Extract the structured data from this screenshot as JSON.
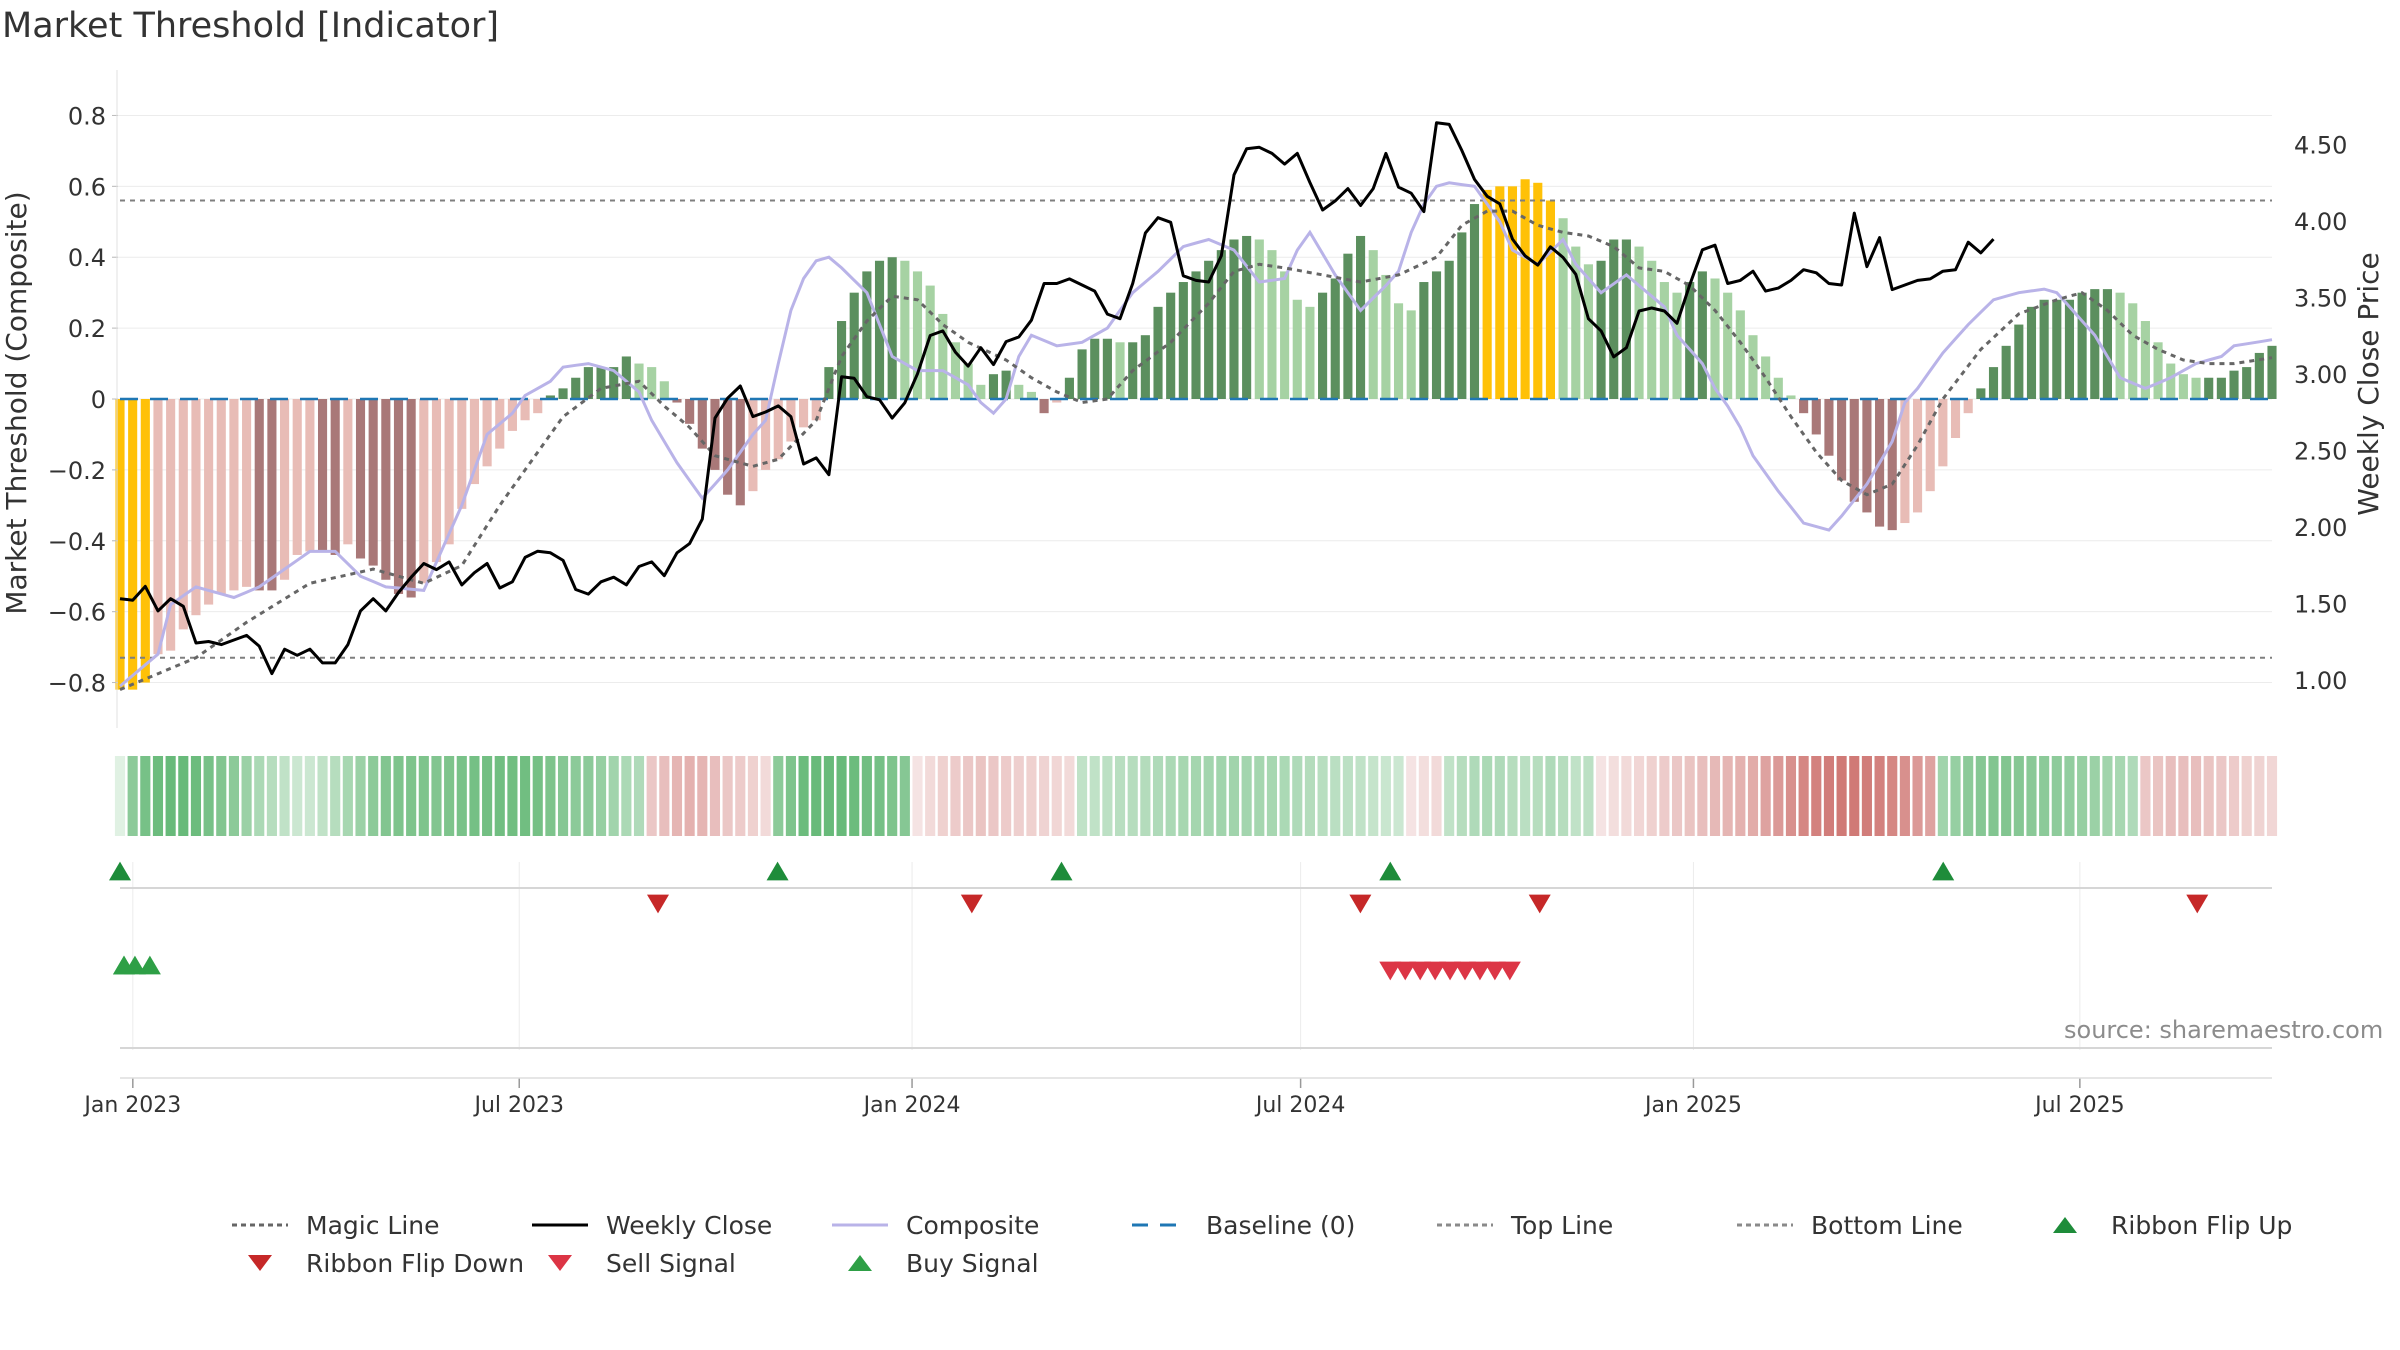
{
  "title": "Market Threshold [Indicator]",
  "source": "source: sharemaestro.com",
  "colors": {
    "composite": "#b9b3e8",
    "weekly_close": "#000000",
    "magic_line": "#666666",
    "baseline": "#1f77b4",
    "guide_line": "#7f7f7f",
    "extreme_bar": "#ffc107",
    "strong_up": "#5b8f5e",
    "weak_up": "#a6d2a3",
    "strong_down": "#a97878",
    "weak_down": "#e8bcb6",
    "buy": "#2e9f46",
    "sell": "#dc3545",
    "flip_up": "#1e8c3a",
    "flip_down": "#c62828",
    "grid": "#ececec"
  },
  "legend": [
    {
      "label": "Magic Line",
      "icon": "dotted-line-icon",
      "color": "#666666"
    },
    {
      "label": "Weekly Close",
      "icon": "solid-line-icon",
      "color": "#000000"
    },
    {
      "label": "Composite",
      "icon": "solid-line-icon",
      "color": "#b9b3e8"
    },
    {
      "label": "Baseline (0)",
      "icon": "dashed-line-icon",
      "color": "#1f77b4"
    },
    {
      "label": "Top Line",
      "icon": "dotted-line-icon",
      "color": "#8a8a8a"
    },
    {
      "label": "Bottom Line",
      "icon": "dotted-line-icon",
      "color": "#8a8a8a"
    },
    {
      "label": "Ribbon Flip Up",
      "icon": "triangle-up-icon",
      "color": "#1e8c3a"
    },
    {
      "label": "Ribbon Flip Down",
      "icon": "triangle-down-icon",
      "color": "#c62828"
    },
    {
      "label": "Sell Signal",
      "icon": "triangle-down-icon",
      "color": "#dc3545"
    },
    {
      "label": "Buy Signal",
      "icon": "triangle-up-icon",
      "color": "#2e9f46"
    }
  ],
  "chart_data": {
    "type": "bar",
    "ylabel": "Market Threshold (Composite)",
    "y2label": "Weekly Close Price",
    "ylim": [
      -0.9,
      0.9
    ],
    "y2lim": [
      0.75,
      4.92
    ],
    "y_ticks": [
      0.8,
      0.6,
      0.4,
      0.2,
      0,
      -0.2,
      -0.4,
      -0.6,
      -0.8
    ],
    "y_tick_labels": [
      "0.8",
      "0.6",
      "0.4",
      "0.2",
      "0",
      "−0.2",
      "−0.4",
      "−0.6",
      "−0.8"
    ],
    "y2_ticks": [
      4.5,
      4.0,
      3.5,
      3.0,
      2.5,
      2.0,
      1.5,
      1.0
    ],
    "y2_tick_labels": [
      "4.50",
      "4.00",
      "3.50",
      "3.00",
      "2.50",
      "2.00",
      "1.50",
      "1.00"
    ],
    "x_range": [
      "2022-12-26",
      "2025-09-29"
    ],
    "x_ticks": [
      "2023-01-01",
      "2023-07-01",
      "2024-01-01",
      "2024-07-01",
      "2025-01-01",
      "2025-07-01"
    ],
    "x_tick_labels": [
      "Jan 2023",
      "Jul 2023",
      "Jan 2024",
      "Jul 2024",
      "Jan 2025",
      "Jul 2025"
    ],
    "top_line": 0.56,
    "bottom_line": -0.73,
    "baseline": 0,
    "grid": true,
    "legend_position": "bottom",
    "composite_anchors": [
      [
        0,
        -0.81
      ],
      [
        3,
        -0.72
      ],
      [
        4,
        -0.58
      ],
      [
        6,
        -0.53
      ],
      [
        9,
        -0.56
      ],
      [
        11,
        -0.53
      ],
      [
        15,
        -0.43
      ],
      [
        17,
        -0.43
      ],
      [
        19,
        -0.5
      ],
      [
        21,
        -0.53
      ],
      [
        24,
        -0.54
      ],
      [
        25,
        -0.46
      ],
      [
        27,
        -0.3
      ],
      [
        29,
        -0.1
      ],
      [
        31,
        -0.04
      ],
      [
        32,
        0.01
      ],
      [
        34,
        0.05
      ],
      [
        35,
        0.09
      ],
      [
        37,
        0.1
      ],
      [
        39,
        0.08
      ],
      [
        41,
        0.02
      ],
      [
        42,
        -0.06
      ],
      [
        44,
        -0.18
      ],
      [
        46,
        -0.28
      ],
      [
        48,
        -0.2
      ],
      [
        50,
        -0.1
      ],
      [
        51,
        -0.06
      ],
      [
        52,
        0.1
      ],
      [
        53,
        0.25
      ],
      [
        54,
        0.34
      ],
      [
        55,
        0.39
      ],
      [
        56,
        0.4
      ],
      [
        57,
        0.37
      ],
      [
        59,
        0.3
      ],
      [
        61,
        0.12
      ],
      [
        63,
        0.08
      ],
      [
        65,
        0.08
      ],
      [
        67,
        0.04
      ],
      [
        68,
        -0.01
      ],
      [
        69,
        -0.04
      ],
      [
        70,
        0.0
      ],
      [
        71,
        0.12
      ],
      [
        72,
        0.18
      ],
      [
        74,
        0.15
      ],
      [
        76,
        0.16
      ],
      [
        78,
        0.2
      ],
      [
        80,
        0.3
      ],
      [
        82,
        0.36
      ],
      [
        84,
        0.43
      ],
      [
        86,
        0.45
      ],
      [
        88,
        0.42
      ],
      [
        90,
        0.33
      ],
      [
        92,
        0.34
      ],
      [
        93,
        0.42
      ],
      [
        94,
        0.47
      ],
      [
        96,
        0.35
      ],
      [
        98,
        0.25
      ],
      [
        100,
        0.32
      ],
      [
        101,
        0.36
      ],
      [
        102,
        0.47
      ],
      [
        103,
        0.55
      ],
      [
        104,
        0.6
      ],
      [
        105,
        0.61
      ],
      [
        107,
        0.6
      ],
      [
        108,
        0.55
      ],
      [
        109,
        0.5
      ],
      [
        110,
        0.42
      ],
      [
        112,
        0.38
      ],
      [
        114,
        0.45
      ],
      [
        115,
        0.38
      ],
      [
        117,
        0.3
      ],
      [
        119,
        0.35
      ],
      [
        120,
        0.32
      ],
      [
        122,
        0.26
      ],
      [
        123,
        0.18
      ],
      [
        125,
        0.1
      ],
      [
        126,
        0.03
      ],
      [
        127,
        -0.02
      ],
      [
        128,
        -0.08
      ],
      [
        129,
        -0.16
      ],
      [
        131,
        -0.26
      ],
      [
        133,
        -0.35
      ],
      [
        135,
        -0.37
      ],
      [
        136,
        -0.33
      ],
      [
        138,
        -0.24
      ],
      [
        140,
        -0.12
      ],
      [
        141,
        -0.01
      ],
      [
        142,
        0.03
      ],
      [
        144,
        0.13
      ],
      [
        146,
        0.21
      ],
      [
        148,
        0.28
      ],
      [
        150,
        0.3
      ],
      [
        152,
        0.31
      ],
      [
        153,
        0.3
      ],
      [
        154,
        0.26
      ],
      [
        156,
        0.18
      ],
      [
        158,
        0.06
      ],
      [
        160,
        0.03
      ],
      [
        162,
        0.06
      ],
      [
        164,
        0.1
      ],
      [
        166,
        0.12
      ],
      [
        167,
        0.15
      ]
    ],
    "composite_bars": [
      -0.82,
      -0.82,
      -0.8,
      -0.72,
      -0.71,
      -0.65,
      -0.61,
      -0.58,
      -0.55,
      -0.54,
      -0.53,
      -0.54,
      -0.54,
      -0.51,
      -0.44,
      -0.43,
      -0.43,
      -0.44,
      -0.41,
      -0.45,
      -0.47,
      -0.51,
      -0.55,
      -0.56,
      -0.52,
      -0.46,
      -0.41,
      -0.31,
      -0.24,
      -0.19,
      -0.14,
      -0.09,
      -0.06,
      -0.04,
      0.01,
      0.03,
      0.06,
      0.09,
      0.09,
      0.09,
      0.12,
      0.1,
      0.09,
      0.05,
      -0.01,
      -0.07,
      -0.14,
      -0.2,
      -0.27,
      -0.3,
      -0.26,
      -0.2,
      -0.17,
      -0.12,
      -0.08,
      -0.06,
      0.09,
      0.22,
      0.3,
      0.36,
      0.39,
      0.4,
      0.39,
      0.36,
      0.32,
      0.24,
      0.16,
      0.1,
      0.04,
      0.07,
      0.08,
      0.04,
      0.02,
      -0.04,
      -0.01,
      0.06,
      0.14,
      0.17,
      0.17,
      0.16,
      0.16,
      0.18,
      0.26,
      0.3,
      0.33,
      0.36,
      0.39,
      0.42,
      0.45,
      0.46,
      0.45,
      0.42,
      0.36,
      0.28,
      0.26,
      0.3,
      0.34,
      0.41,
      0.46,
      0.42,
      0.35,
      0.27,
      0.25,
      0.33,
      0.36,
      0.39,
      0.47,
      0.55,
      0.59,
      0.6,
      0.6,
      0.62,
      0.61,
      0.56,
      0.51,
      0.43,
      0.38,
      0.39,
      0.45,
      0.45,
      0.43,
      0.39,
      0.33,
      0.3,
      0.33,
      0.36,
      0.34,
      0.3,
      0.25,
      0.18,
      0.12,
      0.06,
      0.01,
      -0.04,
      -0.1,
      -0.16,
      -0.23,
      -0.29,
      -0.32,
      -0.36,
      -0.37,
      -0.35,
      -0.32,
      -0.26,
      -0.19,
      -0.11,
      -0.04,
      0.03,
      0.09,
      0.15,
      0.21,
      0.26,
      0.28,
      0.28,
      0.28,
      0.3,
      0.31,
      0.31,
      0.3,
      0.27,
      0.22,
      0.16,
      0.1,
      0.07,
      0.06,
      0.06,
      0.06,
      0.08,
      0.09,
      0.13,
      0.15
    ],
    "weekly_close": [
      1.53,
      1.52,
      1.61,
      1.45,
      1.53,
      1.48,
      1.24,
      1.25,
      1.23,
      1.26,
      1.29,
      1.22,
      1.04,
      1.2,
      1.16,
      1.2,
      1.11,
      1.11,
      1.23,
      1.45,
      1.53,
      1.45,
      1.57,
      1.67,
      1.76,
      1.72,
      1.77,
      1.62,
      1.7,
      1.76,
      1.6,
      1.64,
      1.8,
      1.84,
      1.83,
      1.78,
      1.59,
      1.56,
      1.64,
      1.67,
      1.62,
      1.74,
      1.77,
      1.68,
      1.83,
      1.89,
      2.05,
      2.71,
      2.84,
      2.92,
      2.72,
      2.75,
      2.79,
      2.72,
      2.41,
      2.45,
      2.34,
      2.98,
      2.97,
      2.85,
      2.83,
      2.71,
      2.81,
      3.0,
      3.25,
      3.28,
      3.14,
      3.05,
      3.17,
      3.06,
      3.21,
      3.24,
      3.35,
      3.59,
      3.59,
      3.62,
      3.58,
      3.54,
      3.39,
      3.36,
      3.59,
      3.92,
      4.02,
      3.99,
      3.64,
      3.61,
      3.6,
      3.77,
      4.3,
      4.47,
      4.48,
      4.44,
      4.37,
      4.44,
      4.25,
      4.07,
      4.13,
      4.21,
      4.1,
      4.21,
      4.44,
      4.22,
      4.18,
      4.06,
      4.64,
      4.63,
      4.46,
      4.27,
      4.16,
      4.11,
      3.88,
      3.77,
      3.71,
      3.83,
      3.76,
      3.65,
      3.36,
      3.28,
      3.11,
      3.17,
      3.41,
      3.43,
      3.41,
      3.33,
      3.58,
      3.81,
      3.84,
      3.59,
      3.61,
      3.67,
      3.54,
      3.56,
      3.61,
      3.68,
      3.66,
      3.59,
      3.58,
      4.05,
      3.7,
      3.89,
      3.55,
      3.58,
      3.61,
      3.62,
      3.67,
      3.68,
      3.86,
      3.79,
      3.88
    ],
    "magic_anchors": [
      [
        0,
        -0.82
      ],
      [
        2,
        -0.79
      ],
      [
        6,
        -0.73
      ],
      [
        10,
        -0.63
      ],
      [
        15,
        -0.52
      ],
      [
        20,
        -0.48
      ],
      [
        24,
        -0.52
      ],
      [
        27,
        -0.47
      ],
      [
        30,
        -0.3
      ],
      [
        32,
        -0.2
      ],
      [
        35,
        -0.05
      ],
      [
        38,
        0.03
      ],
      [
        41,
        0.05
      ],
      [
        43,
        -0.02
      ],
      [
        45,
        -0.08
      ],
      [
        47,
        -0.16
      ],
      [
        50,
        -0.19
      ],
      [
        52,
        -0.17
      ],
      [
        55,
        -0.06
      ],
      [
        57,
        0.12
      ],
      [
        59,
        0.22
      ],
      [
        61,
        0.29
      ],
      [
        63,
        0.28
      ],
      [
        65,
        0.21
      ],
      [
        67,
        0.16
      ],
      [
        70,
        0.11
      ],
      [
        72,
        0.06
      ],
      [
        74,
        0.02
      ],
      [
        76,
        -0.01
      ],
      [
        78,
        0.0
      ],
      [
        80,
        0.08
      ],
      [
        83,
        0.16
      ],
      [
        86,
        0.27
      ],
      [
        88,
        0.36
      ],
      [
        90,
        0.38
      ],
      [
        92,
        0.37
      ],
      [
        95,
        0.35
      ],
      [
        98,
        0.33
      ],
      [
        101,
        0.35
      ],
      [
        104,
        0.4
      ],
      [
        106,
        0.49
      ],
      [
        108,
        0.53
      ],
      [
        110,
        0.53
      ],
      [
        112,
        0.49
      ],
      [
        114,
        0.47
      ],
      [
        116,
        0.46
      ],
      [
        118,
        0.43
      ],
      [
        120,
        0.37
      ],
      [
        122,
        0.36
      ],
      [
        124,
        0.32
      ],
      [
        126,
        0.25
      ],
      [
        128,
        0.16
      ],
      [
        130,
        0.06
      ],
      [
        132,
        -0.05
      ],
      [
        134,
        -0.15
      ],
      [
        136,
        -0.23
      ],
      [
        138,
        -0.27
      ],
      [
        140,
        -0.24
      ],
      [
        142,
        -0.13
      ],
      [
        144,
        0.0
      ],
      [
        147,
        0.14
      ],
      [
        150,
        0.24
      ],
      [
        153,
        0.28
      ],
      [
        155,
        0.3
      ],
      [
        157,
        0.25
      ],
      [
        159,
        0.18
      ],
      [
        161,
        0.14
      ],
      [
        163,
        0.11
      ],
      [
        165,
        0.1
      ],
      [
        167,
        0.1
      ]
    ],
    "ribbon_strength": [
      0.1,
      0.55,
      0.65,
      0.7,
      0.72,
      0.72,
      0.7,
      0.65,
      0.6,
      0.55,
      0.48,
      0.4,
      0.35,
      0.3,
      0.25,
      0.25,
      0.3,
      0.35,
      0.42,
      0.48,
      0.55,
      0.6,
      0.62,
      0.62,
      0.62,
      0.6,
      0.62,
      0.64,
      0.66,
      0.67,
      0.68,
      0.68,
      0.68,
      0.66,
      0.62,
      0.58,
      0.55,
      0.55,
      0.5,
      0.45,
      0.4,
      0.38,
      -0.3,
      -0.35,
      -0.4,
      -0.42,
      -0.4,
      -0.35,
      -0.3,
      -0.28,
      -0.25,
      -0.2,
      0.55,
      0.62,
      0.7,
      0.72,
      0.72,
      0.72,
      0.7,
      0.68,
      0.66,
      0.62,
      0.58,
      -0.15,
      -0.2,
      -0.25,
      -0.28,
      -0.3,
      -0.32,
      -0.3,
      -0.28,
      -0.26,
      -0.25,
      -0.24,
      -0.22,
      -0.2,
      0.3,
      0.3,
      0.32,
      0.34,
      0.35,
      0.36,
      0.38,
      0.4,
      0.42,
      0.43,
      0.44,
      0.45,
      0.45,
      0.44,
      0.43,
      0.42,
      0.4,
      0.38,
      0.36,
      0.34,
      0.33,
      0.32,
      0.3,
      0.28,
      0.26,
      0.25,
      -0.15,
      -0.18,
      -0.2,
      0.3,
      0.35,
      0.38,
      0.4,
      0.38,
      0.35,
      0.33,
      0.35,
      0.38,
      0.35,
      0.3,
      0.32,
      -0.15,
      -0.18,
      -0.2,
      -0.22,
      -0.25,
      -0.28,
      -0.3,
      -0.32,
      -0.35,
      -0.38,
      -0.4,
      -0.42,
      -0.45,
      -0.5,
      -0.55,
      -0.6,
      -0.65,
      -0.68,
      -0.7,
      -0.72,
      -0.72,
      -0.7,
      -0.68,
      -0.65,
      -0.6,
      -0.55,
      -0.5,
      0.45,
      0.5,
      0.55,
      0.58,
      0.6,
      0.6,
      0.58,
      0.56,
      0.55,
      0.54,
      0.52,
      0.5,
      0.48,
      0.45,
      0.42,
      0.38,
      -0.3,
      -0.32,
      -0.35,
      -0.35,
      -0.35,
      -0.32,
      -0.3,
      -0.28,
      -0.25,
      -0.24,
      -0.22
    ],
    "ribbon_flip_up": [
      "2022-12-26",
      "2023-10-30",
      "2024-03-11",
      "2024-08-12",
      "2025-04-28"
    ],
    "ribbon_flip_down": [
      "2023-09-04",
      "2024-01-29",
      "2024-07-29",
      "2024-10-21",
      "2025-08-25"
    ],
    "buy_signals": [
      "2022-12-19",
      "2022-12-26",
      "2023-01-02",
      "2023-01-09"
    ],
    "sell_signals": [
      "2024-08-12",
      "2024-08-19",
      "2024-08-26",
      "2024-09-02",
      "2024-09-09",
      "2024-09-16",
      "2024-09-23",
      "2024-09-30",
      "2024-10-07"
    ]
  }
}
